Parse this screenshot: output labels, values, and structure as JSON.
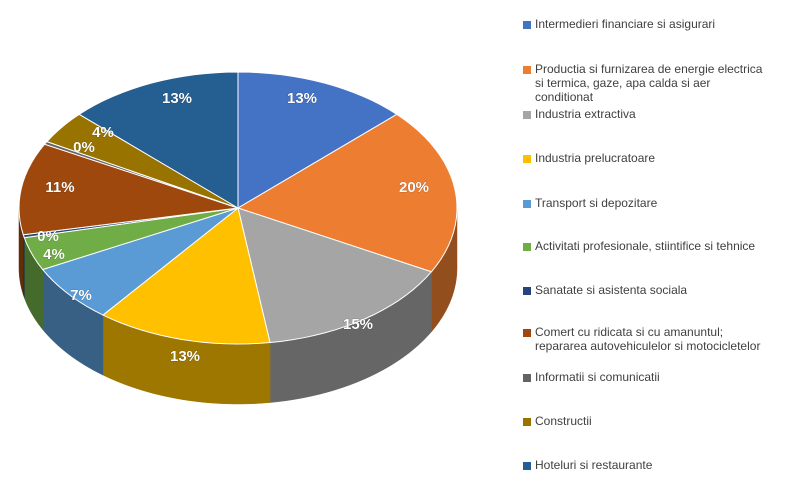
{
  "chart_data": {
    "type": "pie",
    "title": "",
    "legend_position": "right",
    "slices": [
      {
        "label": "Intermedieri financiare si asigurari",
        "value": 13,
        "display": "13%",
        "color": "#4472C4"
      },
      {
        "label": "Productia si furnizarea de energie electrica si termica, gaze, apa calda si aer conditionat",
        "value": 20,
        "display": "20%",
        "color": "#ED7D31"
      },
      {
        "label": "Industria extractiva",
        "value": 15,
        "display": "15%",
        "color": "#A5A5A5"
      },
      {
        "label": "Industria prelucratoare",
        "value": 13,
        "display": "13%",
        "color": "#FFC000"
      },
      {
        "label": "Transport si depozitare",
        "value": 7,
        "display": "7%",
        "color": "#5B9BD5"
      },
      {
        "label": "Activitati profesionale, stiintifice si tehnice",
        "value": 4,
        "display": "4%",
        "color": "#70AD47"
      },
      {
        "label": "Sanatate si asistenta sociala",
        "value": 0,
        "display": "0%",
        "color": "#264478"
      },
      {
        "label": "Comert cu ridicata si cu amanuntul; repararea autovehiculelor si motocicletelor",
        "value": 11,
        "display": "11%",
        "color": "#9E480E"
      },
      {
        "label": "Informatii si comunicatii",
        "value": 0,
        "display": "0%",
        "color": "#636363"
      },
      {
        "label": "Constructii",
        "value": 4,
        "display": "4%",
        "color": "#997300"
      },
      {
        "label": "Hoteluri si restaurante",
        "value": 13,
        "display": "13%",
        "color": "#255E91"
      }
    ]
  }
}
